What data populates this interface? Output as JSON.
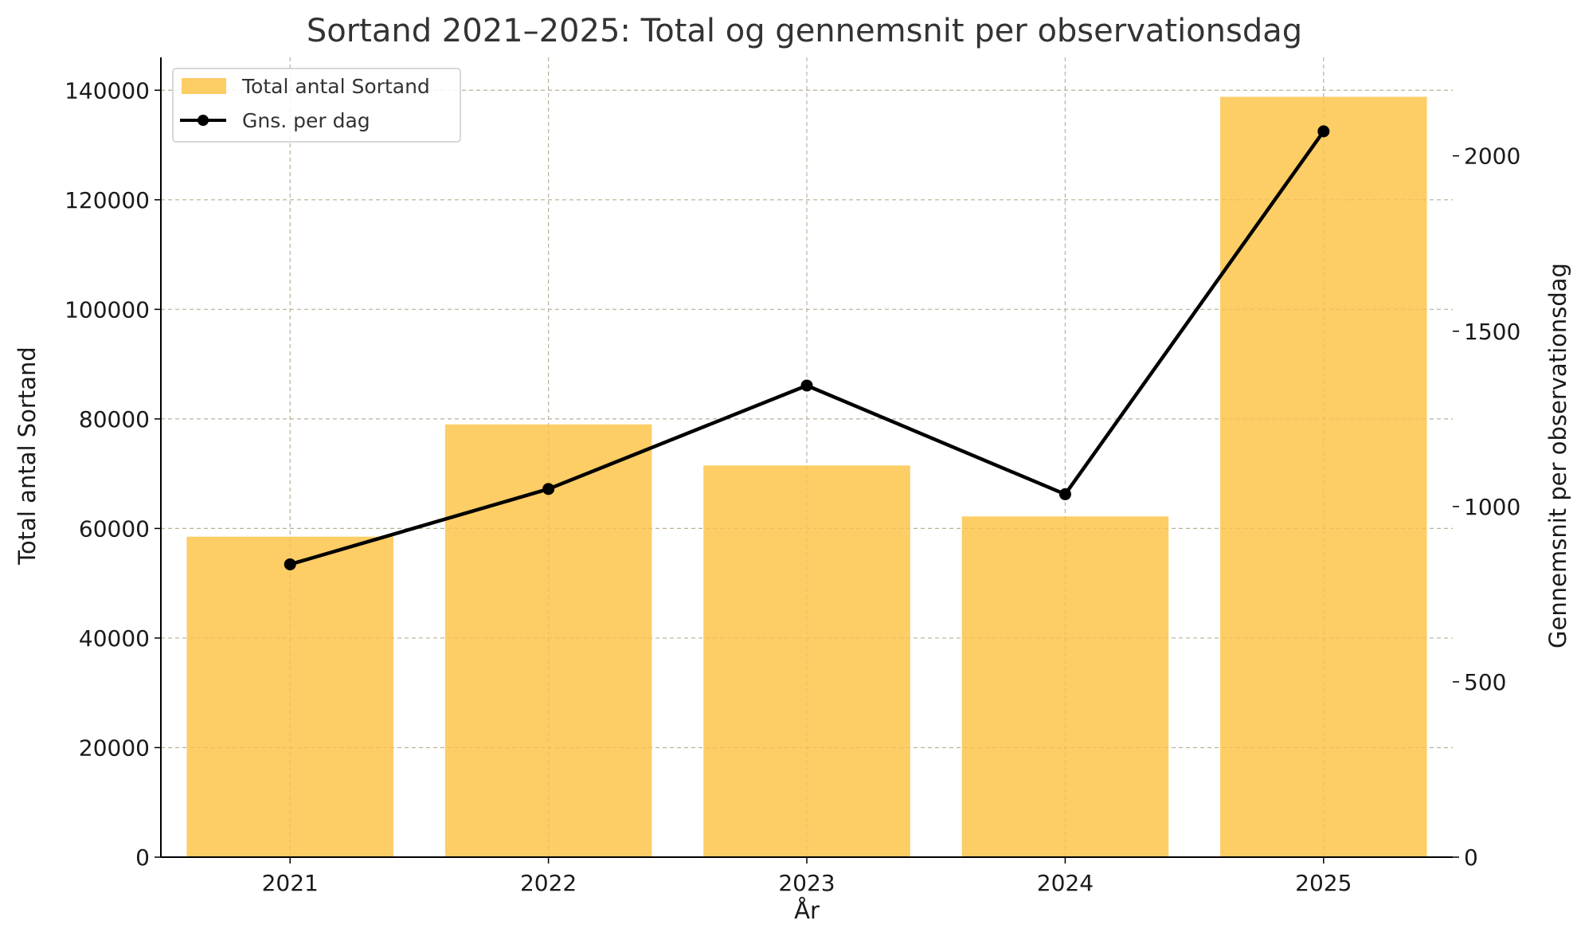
{
  "chart_data": {
    "type": "bar",
    "title": "Sortand 2021–2025: Total og gennemsnit per observationsdag",
    "xlabel": "År",
    "ylabel": "Total antal Sortand",
    "y2label": "Gennemsnit per observationsdag",
    "categories": [
      "2021",
      "2022",
      "2023",
      "2024",
      "2025"
    ],
    "series": [
      {
        "name": "Total antal Sortand",
        "kind": "bar",
        "axis": "left",
        "color": "#FDCD66",
        "values": [
          58500,
          79000,
          71500,
          62200,
          138800
        ]
      },
      {
        "name": "Gns. per dag",
        "kind": "line",
        "axis": "right",
        "color": "#000000",
        "marker": "circle",
        "values": [
          835,
          1050,
          1345,
          1035,
          2070
        ]
      }
    ],
    "ylim": [
      0,
      146000
    ],
    "y_ticks": [
      0,
      20000,
      40000,
      60000,
      80000,
      100000,
      120000,
      140000
    ],
    "y_tick_labels": [
      "0",
      "20000",
      "40000",
      "60000",
      "80000",
      "100000",
      "120000",
      "140000"
    ],
    "y2lim": [
      0,
      2281
    ],
    "y2_ticks": [
      0,
      500,
      1000,
      1500,
      2000
    ],
    "y2_tick_labels": [
      "0",
      "500",
      "1000",
      "1500",
      "2000"
    ],
    "grid": true,
    "legend_position": "top-left"
  }
}
